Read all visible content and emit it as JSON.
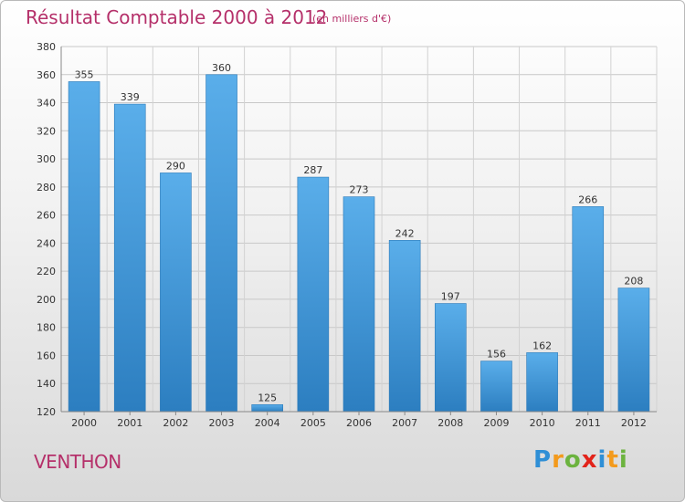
{
  "header": {
    "title": "Résultat Comptable 2000 à 2012",
    "subtitle": "(en milliers d'€)"
  },
  "footer": {
    "place": "VENTHON",
    "logo_letters": [
      {
        "ch": "P",
        "color": "#2f8fd6"
      },
      {
        "ch": "r",
        "color": "#f39a1c"
      },
      {
        "ch": "o",
        "color": "#6cb33f"
      },
      {
        "ch": "x",
        "color": "#e2231a"
      },
      {
        "ch": "i",
        "color": "#2f8fd6"
      },
      {
        "ch": "t",
        "color": "#f39a1c"
      },
      {
        "ch": "i",
        "color": "#6cb33f"
      }
    ]
  },
  "chart_data": {
    "type": "bar",
    "categories": [
      "2000",
      "2001",
      "2002",
      "2003",
      "2004",
      "2005",
      "2006",
      "2007",
      "2008",
      "2009",
      "2010",
      "2011",
      "2012"
    ],
    "values": [
      355,
      339,
      290,
      360,
      125,
      287,
      273,
      242,
      197,
      156,
      162,
      266,
      208
    ],
    "ylim": [
      120,
      380
    ],
    "yticks": [
      120,
      140,
      160,
      180,
      200,
      220,
      240,
      260,
      280,
      300,
      320,
      340,
      360,
      380
    ],
    "grid": true,
    "bar_color_top": "#5aaeea",
    "bar_color_bottom": "#2c7ec0"
  }
}
